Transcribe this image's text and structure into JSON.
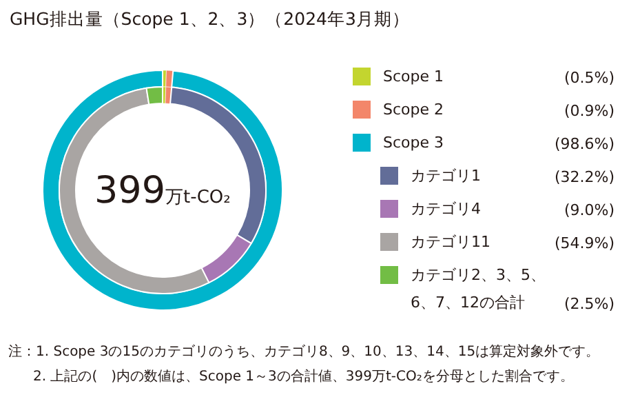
{
  "chart_data": {
    "type": "donut",
    "title": "GHG排出量（Scope 1、2、3）（2024年3月期）",
    "categories": [
      "Scope 1",
      "Scope 2",
      "Scope 3",
      "カテゴリ1",
      "カテゴリ4",
      "カテゴリ11",
      "カテゴリ2、3、5、6、7、12の合計"
    ],
    "colors": [
      "#c3d52f",
      "#f3866a",
      "#00b4cc",
      "#626d98",
      "#a877b4",
      "#a9a5a3",
      "#72bd45"
    ],
    "series": [
      {
        "values": [
          0.5,
          0.9,
          98.6,
          null,
          null,
          null,
          null
        ]
      },
      {
        "values": [
          0.5,
          0.9,
          null,
          32.2,
          9.0,
          54.9,
          2.5
        ]
      }
    ],
    "value_labels": [
      "(0.5%)",
      "(0.9%)",
      "(98.6%)",
      "(32.2%)",
      "(9.0%)",
      "(54.9%)",
      "(2.5%)"
    ],
    "legend": "right",
    "annotations": [
      "399万t-CO₂",
      "注：1. Scope 3の15のカテゴリのうち、カテゴリ8、9、10、13、14、15は算定対象外です。",
      "2. 上記の(　)内の数値は、Scope 1～3の合計値、399万t-CO₂を分母とした割合です。"
    ]
  }
}
